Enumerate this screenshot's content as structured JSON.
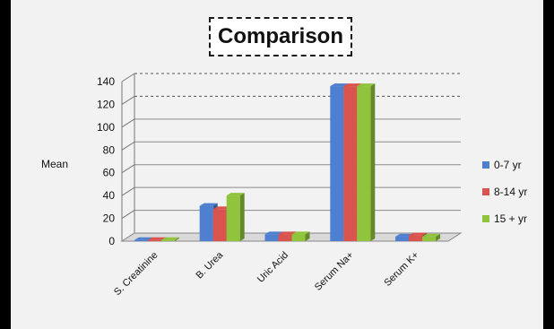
{
  "chart_data": {
    "type": "bar",
    "title": "Comparison",
    "ylabel": "Mean",
    "xlabel": "",
    "categories": [
      "S. Creatinine",
      "B. Urea",
      "Uric Acid",
      "Serum Na+",
      "Serum K+"
    ],
    "series": [
      {
        "name": "0-7 yr",
        "color": "#4f7fd0",
        "values": [
          1,
          31,
          6,
          136,
          4
        ]
      },
      {
        "name": "8-14 yr",
        "color": "#d9534f",
        "values": [
          1,
          28,
          6,
          136,
          5
        ]
      },
      {
        "name": "15 + yr",
        "color": "#8fc43c",
        "values": [
          1,
          40,
          6,
          136,
          4
        ]
      }
    ],
    "yticks": [
      "0",
      "20",
      "40",
      "60",
      "80",
      "100",
      "120",
      "140"
    ],
    "ylim": [
      0,
      140
    ],
    "grid": true,
    "legend_position": "right",
    "chart_style": "3d-clustered-column"
  }
}
